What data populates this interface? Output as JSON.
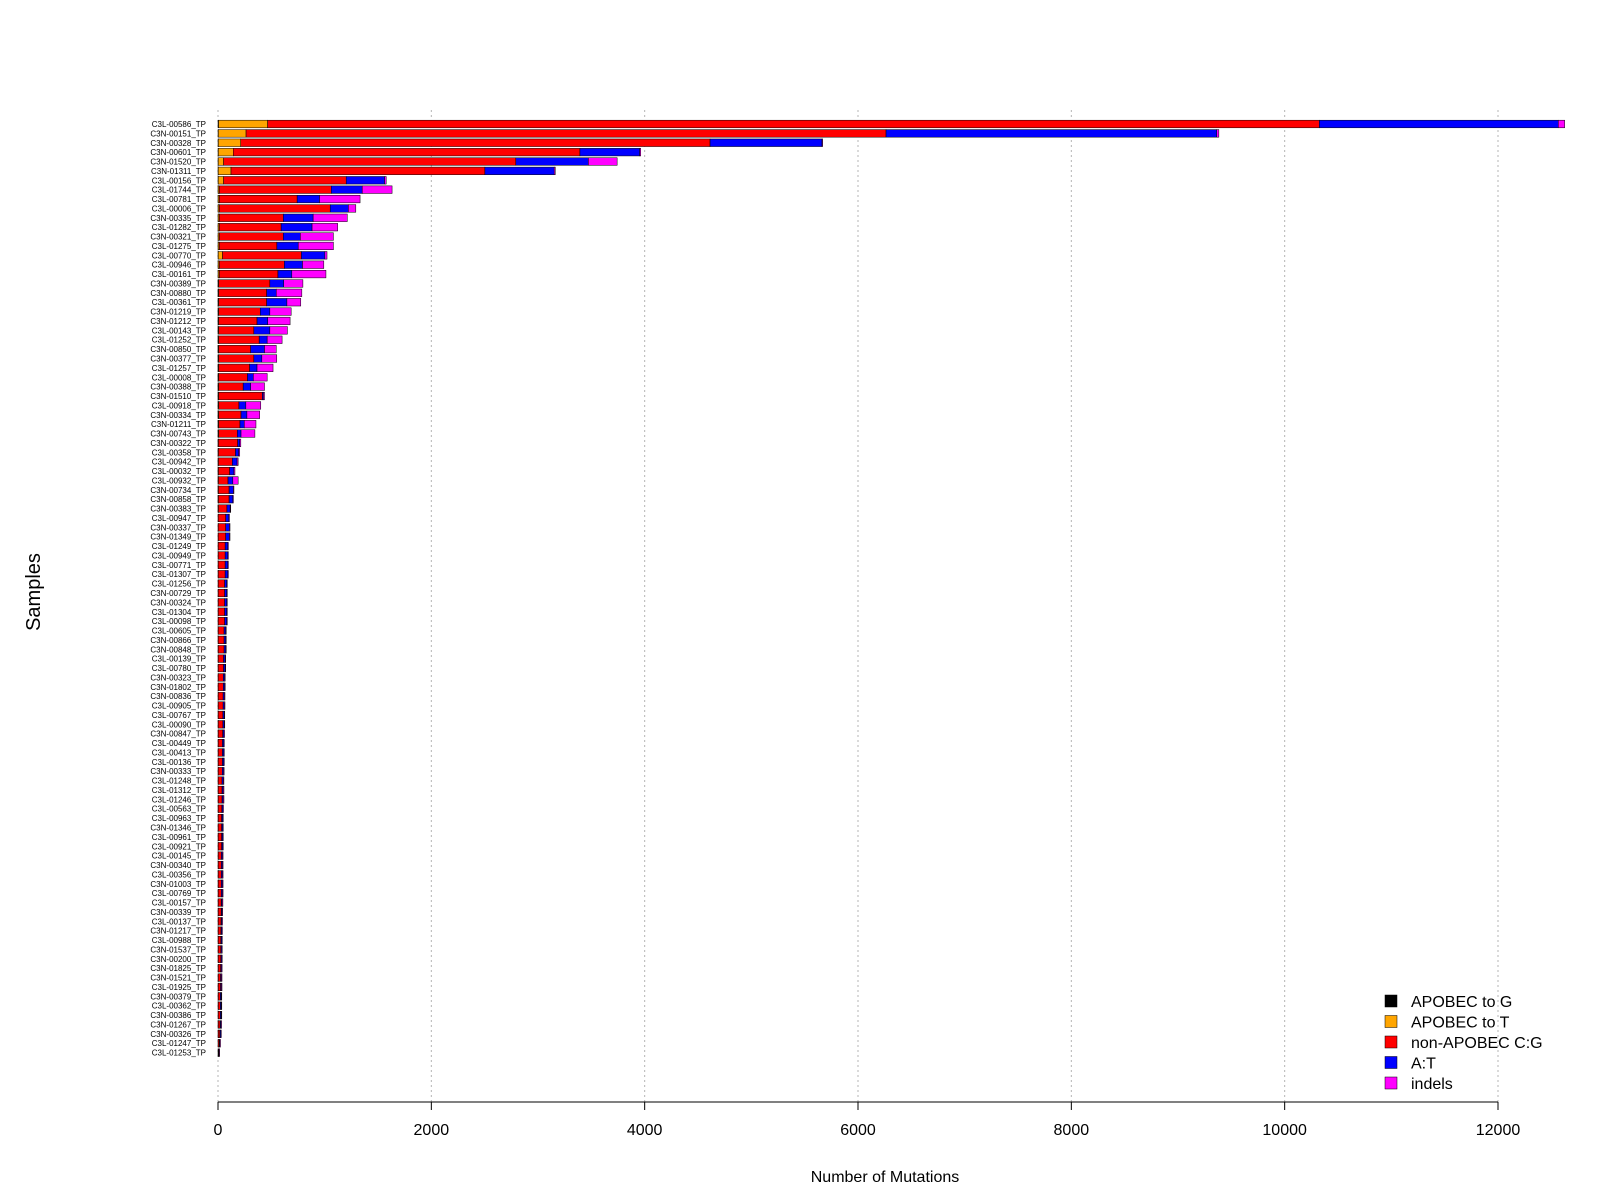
{
  "chart_data": {
    "type": "bar",
    "orientation": "horizontal",
    "stacked": true,
    "title": "",
    "xlabel": "Number of Mutations",
    "ylabel": "Samples",
    "xlim": [
      0,
      12600
    ],
    "xticks": [
      0,
      2000,
      4000,
      6000,
      8000,
      10000,
      12000
    ],
    "grid": "vertical dotted",
    "legend_position": "bottom-right",
    "categories": [
      "C3L-00586_TP",
      "C3N-00151_TP",
      "C3N-00328_TP",
      "C3N-00601_TP",
      "C3N-01520_TP",
      "C3N-01311_TP",
      "C3L-00156_TP",
      "C3L-01744_TP",
      "C3L-00781_TP",
      "C3L-00006_TP",
      "C3N-00335_TP",
      "C3L-01282_TP",
      "C3N-00321_TP",
      "C3L-01275_TP",
      "C3L-00770_TP",
      "C3L-00946_TP",
      "C3L-00161_TP",
      "C3N-00389_TP",
      "C3N-00880_TP",
      "C3L-00361_TP",
      "C3N-01219_TP",
      "C3N-01212_TP",
      "C3L-00143_TP",
      "C3L-01252_TP",
      "C3N-00850_TP",
      "C3N-00377_TP",
      "C3L-01257_TP",
      "C3L-00008_TP",
      "C3N-00388_TP",
      "C3N-01510_TP",
      "C3L-00918_TP",
      "C3N-00334_TP",
      "C3N-01211_TP",
      "C3N-00743_TP",
      "C3N-00322_TP",
      "C3L-00358_TP",
      "C3L-00942_TP",
      "C3L-00032_TP",
      "C3L-00932_TP",
      "C3N-00734_TP",
      "C3N-00858_TP",
      "C3N-00383_TP",
      "C3L-00947_TP",
      "C3N-00337_TP",
      "C3N-01349_TP",
      "C3L-01249_TP",
      "C3L-00949_TP",
      "C3L-00771_TP",
      "C3L-01307_TP",
      "C3L-01256_TP",
      "C3N-00729_TP",
      "C3N-00324_TP",
      "C3L-01304_TP",
      "C3L-00098_TP",
      "C3L-00605_TP",
      "C3N-00866_TP",
      "C3N-00848_TP",
      "C3L-00139_TP",
      "C3L-00780_TP",
      "C3N-00323_TP",
      "C3N-01802_TP",
      "C3N-00836_TP",
      "C3L-00905_TP",
      "C3L-00767_TP",
      "C3L-00090_TP",
      "C3N-00847_TP",
      "C3L-00449_TP",
      "C3L-00413_TP",
      "C3L-00136_TP",
      "C3N-00333_TP",
      "C3L-01248_TP",
      "C3L-01312_TP",
      "C3L-01246_TP",
      "C3L-00563_TP",
      "C3L-00963_TP",
      "C3N-01346_TP",
      "C3L-00961_TP",
      "C3L-00921_TP",
      "C3L-00145_TP",
      "C3N-00340_TP",
      "C3L-00356_TP",
      "C3N-01003_TP",
      "C3L-00769_TP",
      "C3L-00157_TP",
      "C3N-00339_TP",
      "C3L-00137_TP",
      "C3N-01217_TP",
      "C3L-00988_TP",
      "C3N-01537_TP",
      "C3N-00200_TP",
      "C3N-01825_TP",
      "C3N-01521_TP",
      "C3L-01925_TP",
      "C3N-00379_TP",
      "C3L-00362_TP",
      "C3N-00386_TP",
      "C3N-01267_TP",
      "C3N-00326_TP",
      "C3L-01247_TP",
      "C3L-01253_TP"
    ],
    "series": [
      {
        "name": "APOBEC to G",
        "color": "#000000",
        "values": [
          5,
          3,
          3,
          3,
          2,
          2,
          2,
          2,
          2,
          2,
          2,
          2,
          2,
          2,
          2,
          2,
          2,
          1,
          1,
          1,
          1,
          1,
          1,
          1,
          1,
          1,
          1,
          1,
          1,
          1,
          1,
          1,
          1,
          1,
          1,
          1,
          1,
          1,
          1,
          1,
          1,
          1,
          0,
          0,
          0,
          0,
          0,
          0,
          0,
          0,
          0,
          0,
          0,
          0,
          0,
          0,
          0,
          0,
          0,
          0,
          0,
          0,
          0,
          0,
          0,
          0,
          0,
          0,
          0,
          0,
          0,
          0,
          0,
          0,
          0,
          0,
          0,
          0,
          0,
          0,
          0,
          0,
          0,
          0,
          0,
          0,
          0,
          0,
          0,
          0,
          0,
          0,
          0,
          0,
          0,
          0,
          0,
          0,
          0,
          0
        ]
      },
      {
        "name": "APOBEC to T",
        "color": "#FFA500",
        "values": [
          460,
          260,
          210,
          140,
          50,
          120,
          50,
          10,
          10,
          10,
          10,
          10,
          10,
          10,
          40,
          10,
          10,
          5,
          5,
          5,
          5,
          5,
          5,
          5,
          5,
          5,
          5,
          5,
          5,
          5,
          5,
          5,
          5,
          5,
          3,
          3,
          3,
          3,
          3,
          3,
          3,
          3,
          2,
          2,
          2,
          2,
          2,
          2,
          2,
          2,
          2,
          2,
          2,
          2,
          2,
          2,
          2,
          2,
          2,
          2,
          2,
          2,
          2,
          2,
          2,
          2,
          2,
          2,
          2,
          2,
          2,
          2,
          2,
          2,
          2,
          2,
          2,
          2,
          2,
          2,
          2,
          2,
          2,
          2,
          2,
          2,
          2,
          2,
          2,
          2,
          2,
          2,
          2,
          2,
          2,
          2,
          2,
          2,
          2,
          2
        ]
      },
      {
        "name": "non-APOBEC C:G",
        "color": "#FF0000",
        "values": [
          9860,
          6000,
          4400,
          3250,
          2740,
          2380,
          1150,
          1050,
          730,
          1040,
          600,
          580,
          600,
          540,
          740,
          610,
          550,
          480,
          450,
          450,
          390,
          360,
          330,
          380,
          300,
          330,
          290,
          270,
          230,
          410,
          190,
          210,
          200,
          175,
          180,
          160,
          130,
          105,
          90,
          100,
          100,
          80,
          70,
          70,
          70,
          65,
          65,
          65,
          65,
          60,
          60,
          60,
          60,
          60,
          55,
          55,
          55,
          50,
          50,
          48,
          48,
          46,
          46,
          44,
          44,
          42,
          40,
          40,
          40,
          38,
          36,
          36,
          36,
          34,
          32,
          32,
          32,
          32,
          30,
          30,
          30,
          30,
          30,
          28,
          28,
          27,
          26,
          25,
          24,
          24,
          23,
          22,
          22,
          20,
          20,
          20,
          18,
          16,
          10,
          5
        ]
      },
      {
        "name": "A:T",
        "color": "#0000FF",
        "values": [
          2240,
          3100,
          1050,
          560,
          680,
          650,
          360,
          290,
          210,
          170,
          280,
          290,
          160,
          200,
          220,
          170,
          130,
          130,
          90,
          190,
          90,
          100,
          150,
          75,
          130,
          75,
          70,
          55,
          70,
          10,
          65,
          55,
          40,
          35,
          20,
          30,
          45,
          40,
          45,
          40,
          35,
          30,
          30,
          35,
          35,
          25,
          25,
          25,
          25,
          20,
          20,
          20,
          20,
          20,
          15,
          15,
          15,
          15,
          15,
          12,
          12,
          12,
          12,
          12,
          12,
          12,
          12,
          12,
          12,
          12,
          12,
          10,
          10,
          10,
          10,
          10,
          10,
          10,
          10,
          10,
          10,
          10,
          10,
          8,
          8,
          8,
          8,
          8,
          8,
          8,
          8,
          8,
          8,
          8,
          8,
          8,
          8,
          8,
          6,
          3
        ]
      },
      {
        "name": "indels",
        "color": "#FF00FF",
        "values": [
          60,
          20,
          5,
          10,
          270,
          10,
          15,
          280,
          380,
          70,
          320,
          240,
          310,
          330,
          20,
          200,
          320,
          180,
          240,
          130,
          200,
          210,
          165,
          140,
          110,
          140,
          150,
          130,
          130,
          10,
          140,
          120,
          110,
          130,
          10,
          10,
          10,
          10,
          50,
          5,
          5,
          5,
          5,
          5,
          5,
          5,
          5,
          5,
          5,
          5,
          5,
          5,
          5,
          5,
          5,
          5,
          5,
          5,
          5,
          5,
          5,
          5,
          5,
          5,
          5,
          5,
          5,
          5,
          5,
          5,
          5,
          8,
          8,
          5,
          5,
          5,
          5,
          5,
          5,
          5,
          5,
          5,
          5,
          8,
          5,
          5,
          5,
          5,
          5,
          5,
          5,
          5,
          5,
          5,
          5,
          5,
          5,
          5,
          5,
          2
        ]
      }
    ]
  }
}
